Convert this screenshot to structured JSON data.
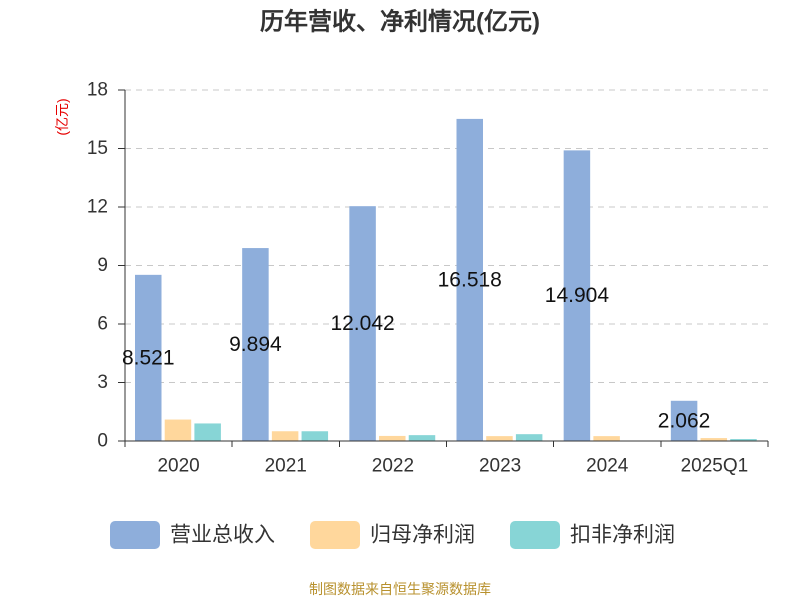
{
  "footer": "制图数据来自恒生聚源数据库",
  "colors": {
    "title": "#333333",
    "ylabel": "#e60000",
    "axis": "#333333",
    "grid": "#c8c8c8",
    "footer": "#b8912e"
  },
  "chart_data": {
    "type": "bar",
    "title": "历年营收、净利情况(亿元)",
    "xlabel": "",
    "ylabel": "(亿元)",
    "categories": [
      "2020",
      "2021",
      "2022",
      "2023",
      "2024",
      "2025Q1"
    ],
    "ylim": [
      0,
      18
    ],
    "yticks": [
      0,
      3,
      6,
      9,
      12,
      15,
      18
    ],
    "grid": true,
    "legend_position": "bottom",
    "series": [
      {
        "name": "营业总收入",
        "color": "#8eaedb",
        "data_labels": true,
        "values": [
          8.521,
          9.894,
          12.042,
          16.518,
          14.904,
          2.062
        ]
      },
      {
        "name": "归母净利润",
        "color": "#ffd79c",
        "data_labels": false,
        "values": [
          1.1,
          0.5,
          0.26,
          0.25,
          0.25,
          0.15
        ]
      },
      {
        "name": "扣非净利润",
        "color": "#87d5d6",
        "data_labels": false,
        "values": [
          0.9,
          0.5,
          0.3,
          0.35,
          0,
          0.1
        ]
      }
    ]
  }
}
